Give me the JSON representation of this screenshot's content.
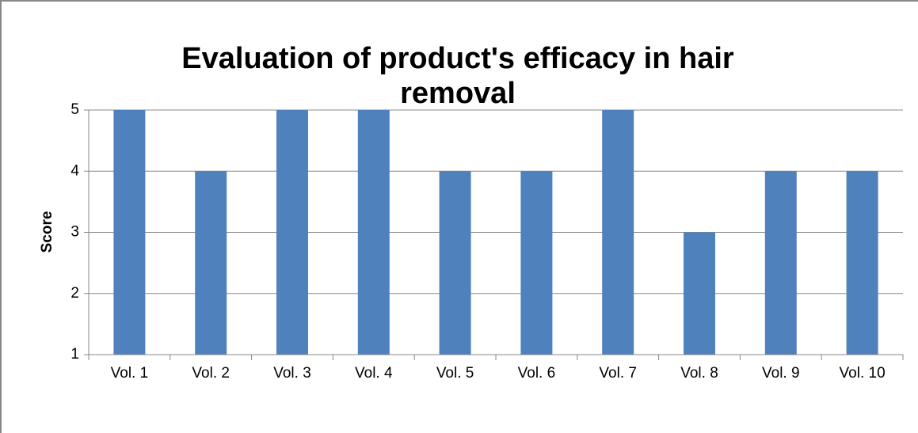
{
  "chart_data": {
    "type": "bar",
    "title": "Evaluation of product's efficacy in hair removal",
    "y_label": "Score",
    "categories": [
      "Vol. 1",
      "Vol. 2",
      "Vol. 3",
      "Vol. 4",
      "Vol. 5",
      "Vol. 6",
      "Vol. 7",
      "Vol. 8",
      "Vol. 9",
      "Vol. 10"
    ],
    "values": [
      5,
      4,
      5,
      5,
      4,
      4,
      5,
      3,
      4,
      4
    ],
    "color": "#4f81bd",
    "ylim": [
      1,
      5
    ],
    "yticks": [
      1,
      2,
      3,
      4,
      5
    ],
    "grid": true
  }
}
